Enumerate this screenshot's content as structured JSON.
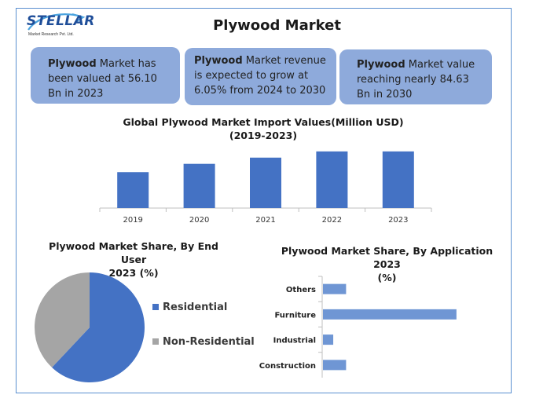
{
  "logo": {
    "name": "STELLAR",
    "tagline": "Market Research Pvt. Ltd."
  },
  "page": {
    "title": "Plywood Market"
  },
  "cards": [
    {
      "bold": "Plywood",
      "text": " Market has been valued at 56.10 Bn in 2023"
    },
    {
      "bold": "Plywood",
      "text": " Market revenue is expected to grow at 6.05% from 2024 to 2030"
    },
    {
      "bold": "Plywood",
      "text": " Market value reaching nearly 84.63 Bn in 2030"
    }
  ],
  "colors": {
    "bar": "#4472c4",
    "residential": "#4472c4",
    "non_residential": "#a5a5a5",
    "card": "#8eaadb",
    "app_bar": "#6f96d4"
  },
  "chart_data": [
    {
      "type": "bar",
      "title": "Global Plywood Market Import Values(Million USD)",
      "subtitle": "(2019-2023)",
      "categories": [
        "2019",
        "2020",
        "2021",
        "2022",
        "2023"
      ],
      "values": [
        52,
        64,
        73,
        82,
        82
      ],
      "ylim": [
        0,
        100
      ],
      "grid": false
    },
    {
      "type": "pie",
      "title": "Plywood Market Share, By End User",
      "subtitle": "2023 (%)",
      "labels": [
        "Residential",
        "Non-Residential"
      ],
      "values": [
        62,
        38
      ],
      "legend": "right"
    },
    {
      "type": "bar",
      "orientation": "horizontal",
      "title": "Plywood Market Share, By Application 2023",
      "subtitle": "(%)",
      "categories": [
        "Others",
        "Furniture",
        "Industrial",
        "Construction"
      ],
      "values": [
        9,
        52,
        4,
        9
      ],
      "xlim": [
        0,
        60
      ]
    }
  ]
}
